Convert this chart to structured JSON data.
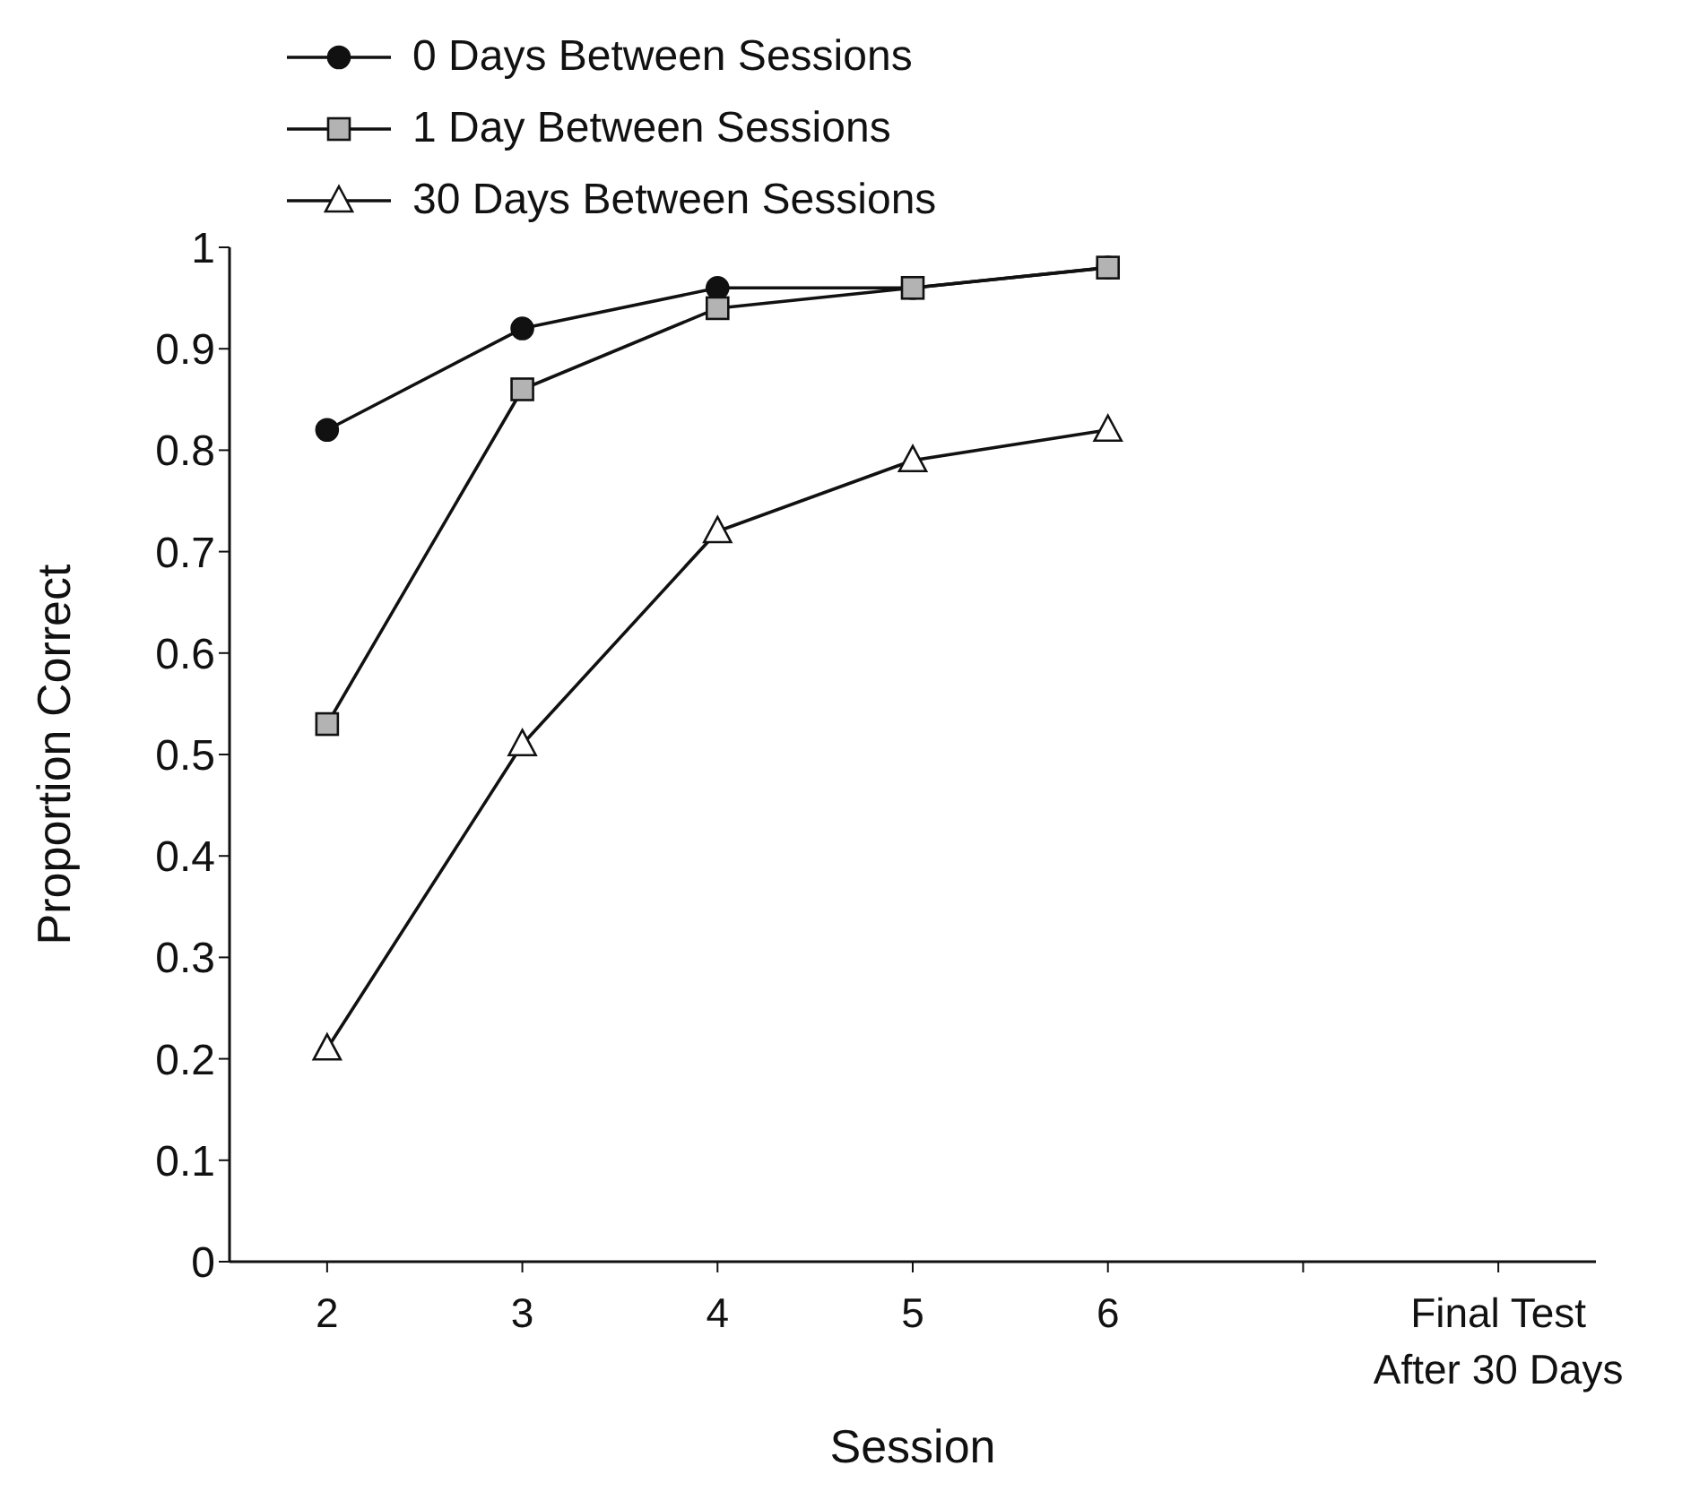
{
  "chart_data": {
    "type": "line",
    "xlabel": "Session",
    "ylabel": "Proportion Correct",
    "categories": [
      "2",
      "3",
      "4",
      "5",
      "6",
      null,
      "Final Test After 30 Days"
    ],
    "series": [
      {
        "name": "0 Days Between Sessions",
        "color": "#111111",
        "marker": "circle",
        "values": [
          0.82,
          0.92,
          0.96,
          0.96,
          0.98,
          null,
          null
        ]
      },
      {
        "name": "1 Day Between Sessions",
        "color": "#b3b3b3",
        "marker": "square",
        "values": [
          0.53,
          0.86,
          0.94,
          0.96,
          0.98,
          null,
          null
        ]
      },
      {
        "name": "30 Days Between Sessions",
        "color": "#ffffff",
        "marker": "triangle",
        "values": [
          0.21,
          0.51,
          0.72,
          0.79,
          0.82,
          null,
          null
        ]
      }
    ],
    "ylim": [
      0,
      1
    ],
    "yticks": [
      0,
      0.1,
      0.2,
      0.3,
      0.4,
      0.5,
      0.6,
      0.7,
      0.8,
      0.9,
      1
    ],
    "grid": false,
    "legend": "top left",
    "line_style": "solid"
  }
}
